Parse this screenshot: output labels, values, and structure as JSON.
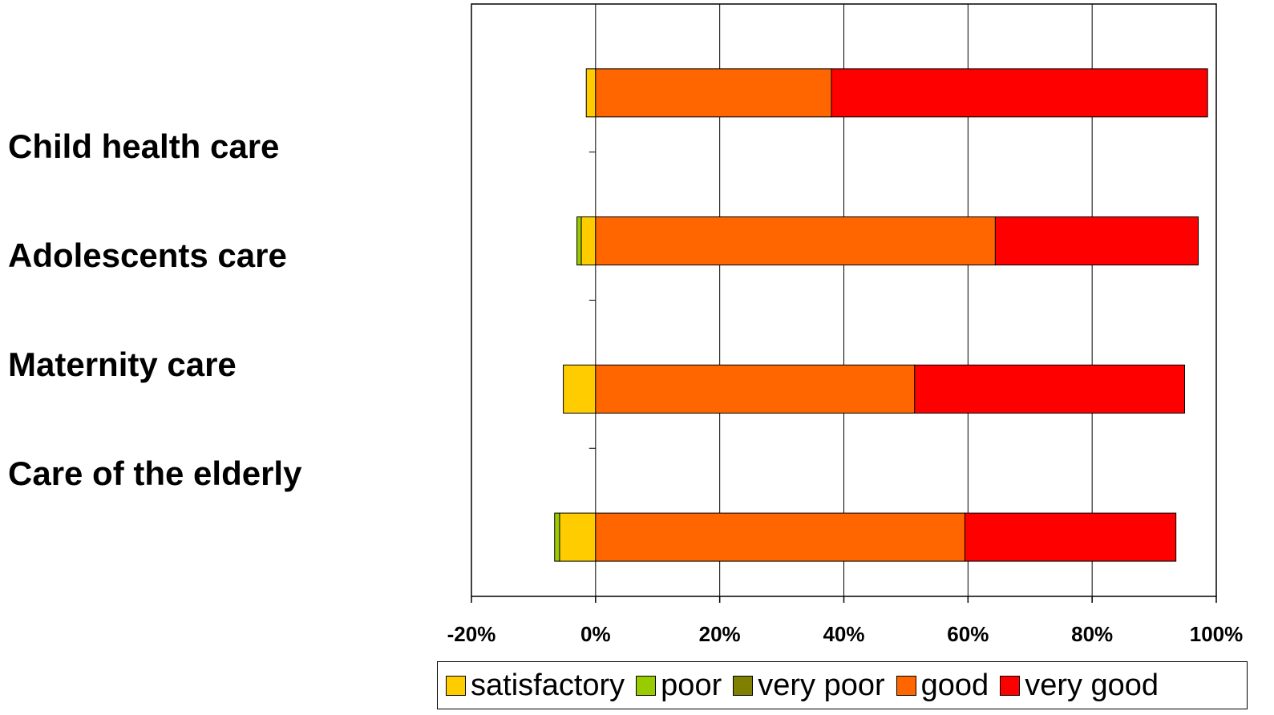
{
  "chart_data": {
    "type": "bar",
    "orientation": "horizontal",
    "stacked": true,
    "categories": [
      "Child health care",
      "Adolescents care",
      "Maternity care",
      "Care of the elderly"
    ],
    "series": [
      {
        "name": "satisfactory",
        "color": "#FFCC00",
        "values": [
          -1.5,
          -2.3,
          -5.2,
          -5.8
        ]
      },
      {
        "name": "poor",
        "color": "#99CC00",
        "values": [
          0,
          -0.7,
          0,
          -0.8
        ]
      },
      {
        "name": "very poor",
        "color": "#808000",
        "values": [
          0,
          0,
          0,
          0
        ]
      },
      {
        "name": "good",
        "color": "#FF6600",
        "values": [
          38.0,
          64.4,
          51.4,
          59.5
        ]
      },
      {
        "name": "very good",
        "color": "#FF0000",
        "values": [
          60.6,
          32.7,
          43.5,
          34.0
        ]
      }
    ],
    "xlim": [
      -20,
      100
    ],
    "xticks": [
      -20,
      0,
      20,
      40,
      60,
      80,
      100
    ],
    "xtick_labels": [
      "-20%",
      "0%",
      "20%",
      "40%",
      "60%",
      "80%",
      "100%"
    ],
    "grid": true,
    "legend": "bottom",
    "title": "",
    "xlabel": "",
    "ylabel": ""
  }
}
